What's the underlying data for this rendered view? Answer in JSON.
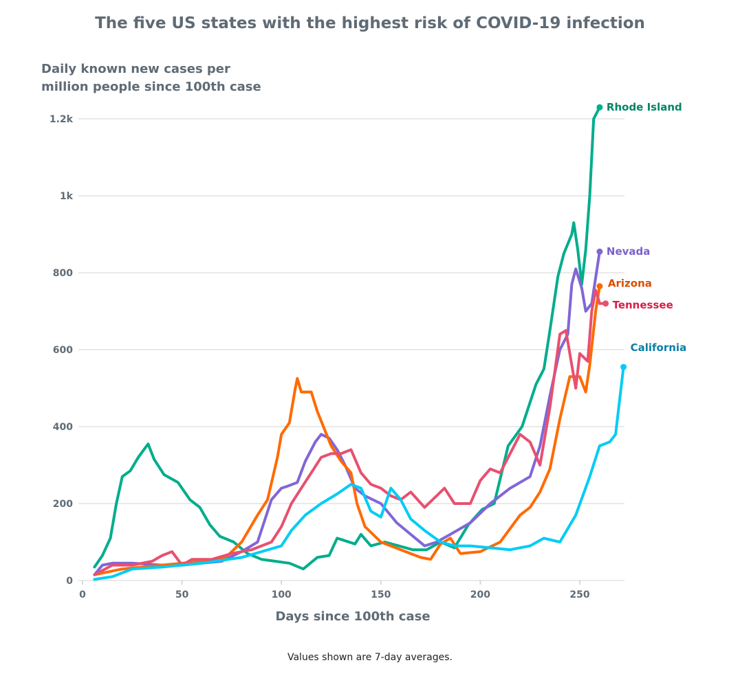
{
  "chart_data": {
    "type": "line",
    "title": "The five US states with the highest risk of COVID-19 infection",
    "ylabel_lines": [
      "Daily known new cases per",
      "million people since 100th case"
    ],
    "xlabel": "Days since 100th case",
    "footnote": "Values shown are 7-day averages.",
    "xlim": [
      0,
      275
    ],
    "ylim": [
      0,
      1200
    ],
    "grid": true,
    "x_ticks": [
      {
        "v": 0,
        "label": "0"
      },
      {
        "v": 50,
        "label": "50"
      },
      {
        "v": 100,
        "label": "100"
      },
      {
        "v": 150,
        "label": "150"
      },
      {
        "v": 200,
        "label": "200"
      },
      {
        "v": 250,
        "label": "250"
      }
    ],
    "y_ticks": [
      {
        "v": 0,
        "label": "0"
      },
      {
        "v": 200,
        "label": "200"
      },
      {
        "v": 400,
        "label": "400"
      },
      {
        "v": 600,
        "label": "600"
      },
      {
        "v": 800,
        "label": "800"
      },
      {
        "v": 1000,
        "label": "1k"
      },
      {
        "v": 1200,
        "label": "1.2k"
      }
    ],
    "legend": "direct labels at line ends",
    "series": [
      {
        "name": "Rhode Island",
        "color": "#00ad8c",
        "label_color": "#008567",
        "x": [
          6,
          10,
          14,
          17,
          20,
          24,
          28,
          33,
          36,
          41,
          48,
          54,
          59,
          64,
          69,
          76,
          83,
          90,
          97,
          104,
          111,
          118,
          124,
          128,
          131,
          137,
          140,
          145,
          152,
          159,
          166,
          173,
          180,
          187,
          194,
          201,
          207,
          214,
          221,
          228,
          232,
          235,
          239,
          242,
          246,
          247,
          249,
          251,
          253,
          255,
          257,
          260
        ],
        "y": [
          35,
          65,
          110,
          200,
          270,
          285,
          320,
          355,
          315,
          275,
          255,
          210,
          190,
          145,
          115,
          100,
          70,
          55,
          50,
          45,
          30,
          60,
          65,
          110,
          105,
          95,
          120,
          90,
          100,
          90,
          80,
          80,
          100,
          85,
          145,
          185,
          200,
          350,
          400,
          510,
          550,
          650,
          790,
          850,
          900,
          930,
          860,
          770,
          860,
          1000,
          1200,
          1230
        ]
      },
      {
        "name": "Nevada",
        "color": "#8166d6",
        "label_color": "#7a62cc",
        "x": [
          6,
          10,
          15,
          25,
          40,
          50,
          60,
          70,
          80,
          88,
          95,
          100,
          103,
          108,
          112,
          117,
          120,
          124,
          128,
          132,
          137,
          142,
          150,
          158,
          165,
          172,
          178,
          185,
          195,
          205,
          215,
          225,
          230,
          235,
          240,
          244,
          246,
          248,
          251,
          253,
          256,
          260
        ],
        "y": [
          15,
          40,
          45,
          45,
          40,
          40,
          45,
          50,
          75,
          100,
          210,
          240,
          245,
          255,
          310,
          360,
          380,
          370,
          340,
          300,
          240,
          220,
          200,
          150,
          120,
          90,
          100,
          120,
          150,
          200,
          240,
          270,
          350,
          480,
          600,
          640,
          770,
          810,
          760,
          700,
          720,
          855
        ]
      },
      {
        "name": "Arizona",
        "color": "#ff6a00",
        "label_color": "#d94c00",
        "x": [
          6,
          20,
          40,
          60,
          72,
          80,
          88,
          93,
          98,
          100,
          104,
          107,
          108,
          110,
          115,
          118,
          125,
          130,
          135,
          138,
          142,
          150,
          160,
          170,
          175,
          180,
          185,
          190,
          200,
          210,
          220,
          225,
          230,
          235,
          240,
          245,
          250,
          253,
          255,
          258,
          260
        ],
        "y": [
          15,
          30,
          40,
          50,
          60,
          100,
          170,
          210,
          320,
          380,
          410,
          500,
          525,
          490,
          490,
          440,
          350,
          310,
          280,
          200,
          140,
          100,
          80,
          60,
          55,
          95,
          110,
          70,
          75,
          100,
          170,
          190,
          230,
          290,
          420,
          530,
          530,
          490,
          560,
          700,
          765
        ]
      },
      {
        "name": "Tennessee",
        "color": "#e8506f",
        "label_color": "#d91c4a",
        "x": [
          6,
          15,
          25,
          35,
          40,
          45,
          50,
          55,
          65,
          75,
          85,
          95,
          100,
          105,
          110,
          115,
          120,
          125,
          130,
          135,
          140,
          145,
          150,
          155,
          160,
          165,
          172,
          178,
          182,
          187,
          195,
          200,
          205,
          210,
          215,
          220,
          225,
          230,
          235,
          240,
          243,
          246,
          248,
          250,
          254,
          256,
          258,
          260,
          263
        ],
        "y": [
          15,
          40,
          40,
          50,
          65,
          75,
          40,
          55,
          55,
          70,
          80,
          100,
          140,
          200,
          240,
          280,
          320,
          330,
          330,
          340,
          280,
          250,
          240,
          220,
          210,
          230,
          190,
          220,
          240,
          200,
          200,
          260,
          290,
          280,
          330,
          380,
          360,
          300,
          450,
          640,
          650,
          560,
          500,
          590,
          570,
          700,
          755,
          720,
          720
        ]
      },
      {
        "name": "California",
        "color": "#00ccf5",
        "label_color": "#0a7ea6",
        "x": [
          6,
          15,
          25,
          40,
          60,
          80,
          90,
          100,
          105,
          112,
          120,
          128,
          135,
          140,
          145,
          150,
          155,
          160,
          165,
          172,
          180,
          187,
          195,
          205,
          215,
          225,
          232,
          240,
          248,
          255,
          260,
          265,
          268,
          272
        ],
        "y": [
          3,
          10,
          30,
          35,
          45,
          60,
          75,
          90,
          130,
          170,
          200,
          225,
          250,
          240,
          180,
          165,
          240,
          210,
          160,
          130,
          100,
          90,
          90,
          85,
          80,
          90,
          110,
          100,
          170,
          270,
          350,
          360,
          380,
          555
        ]
      }
    ]
  }
}
